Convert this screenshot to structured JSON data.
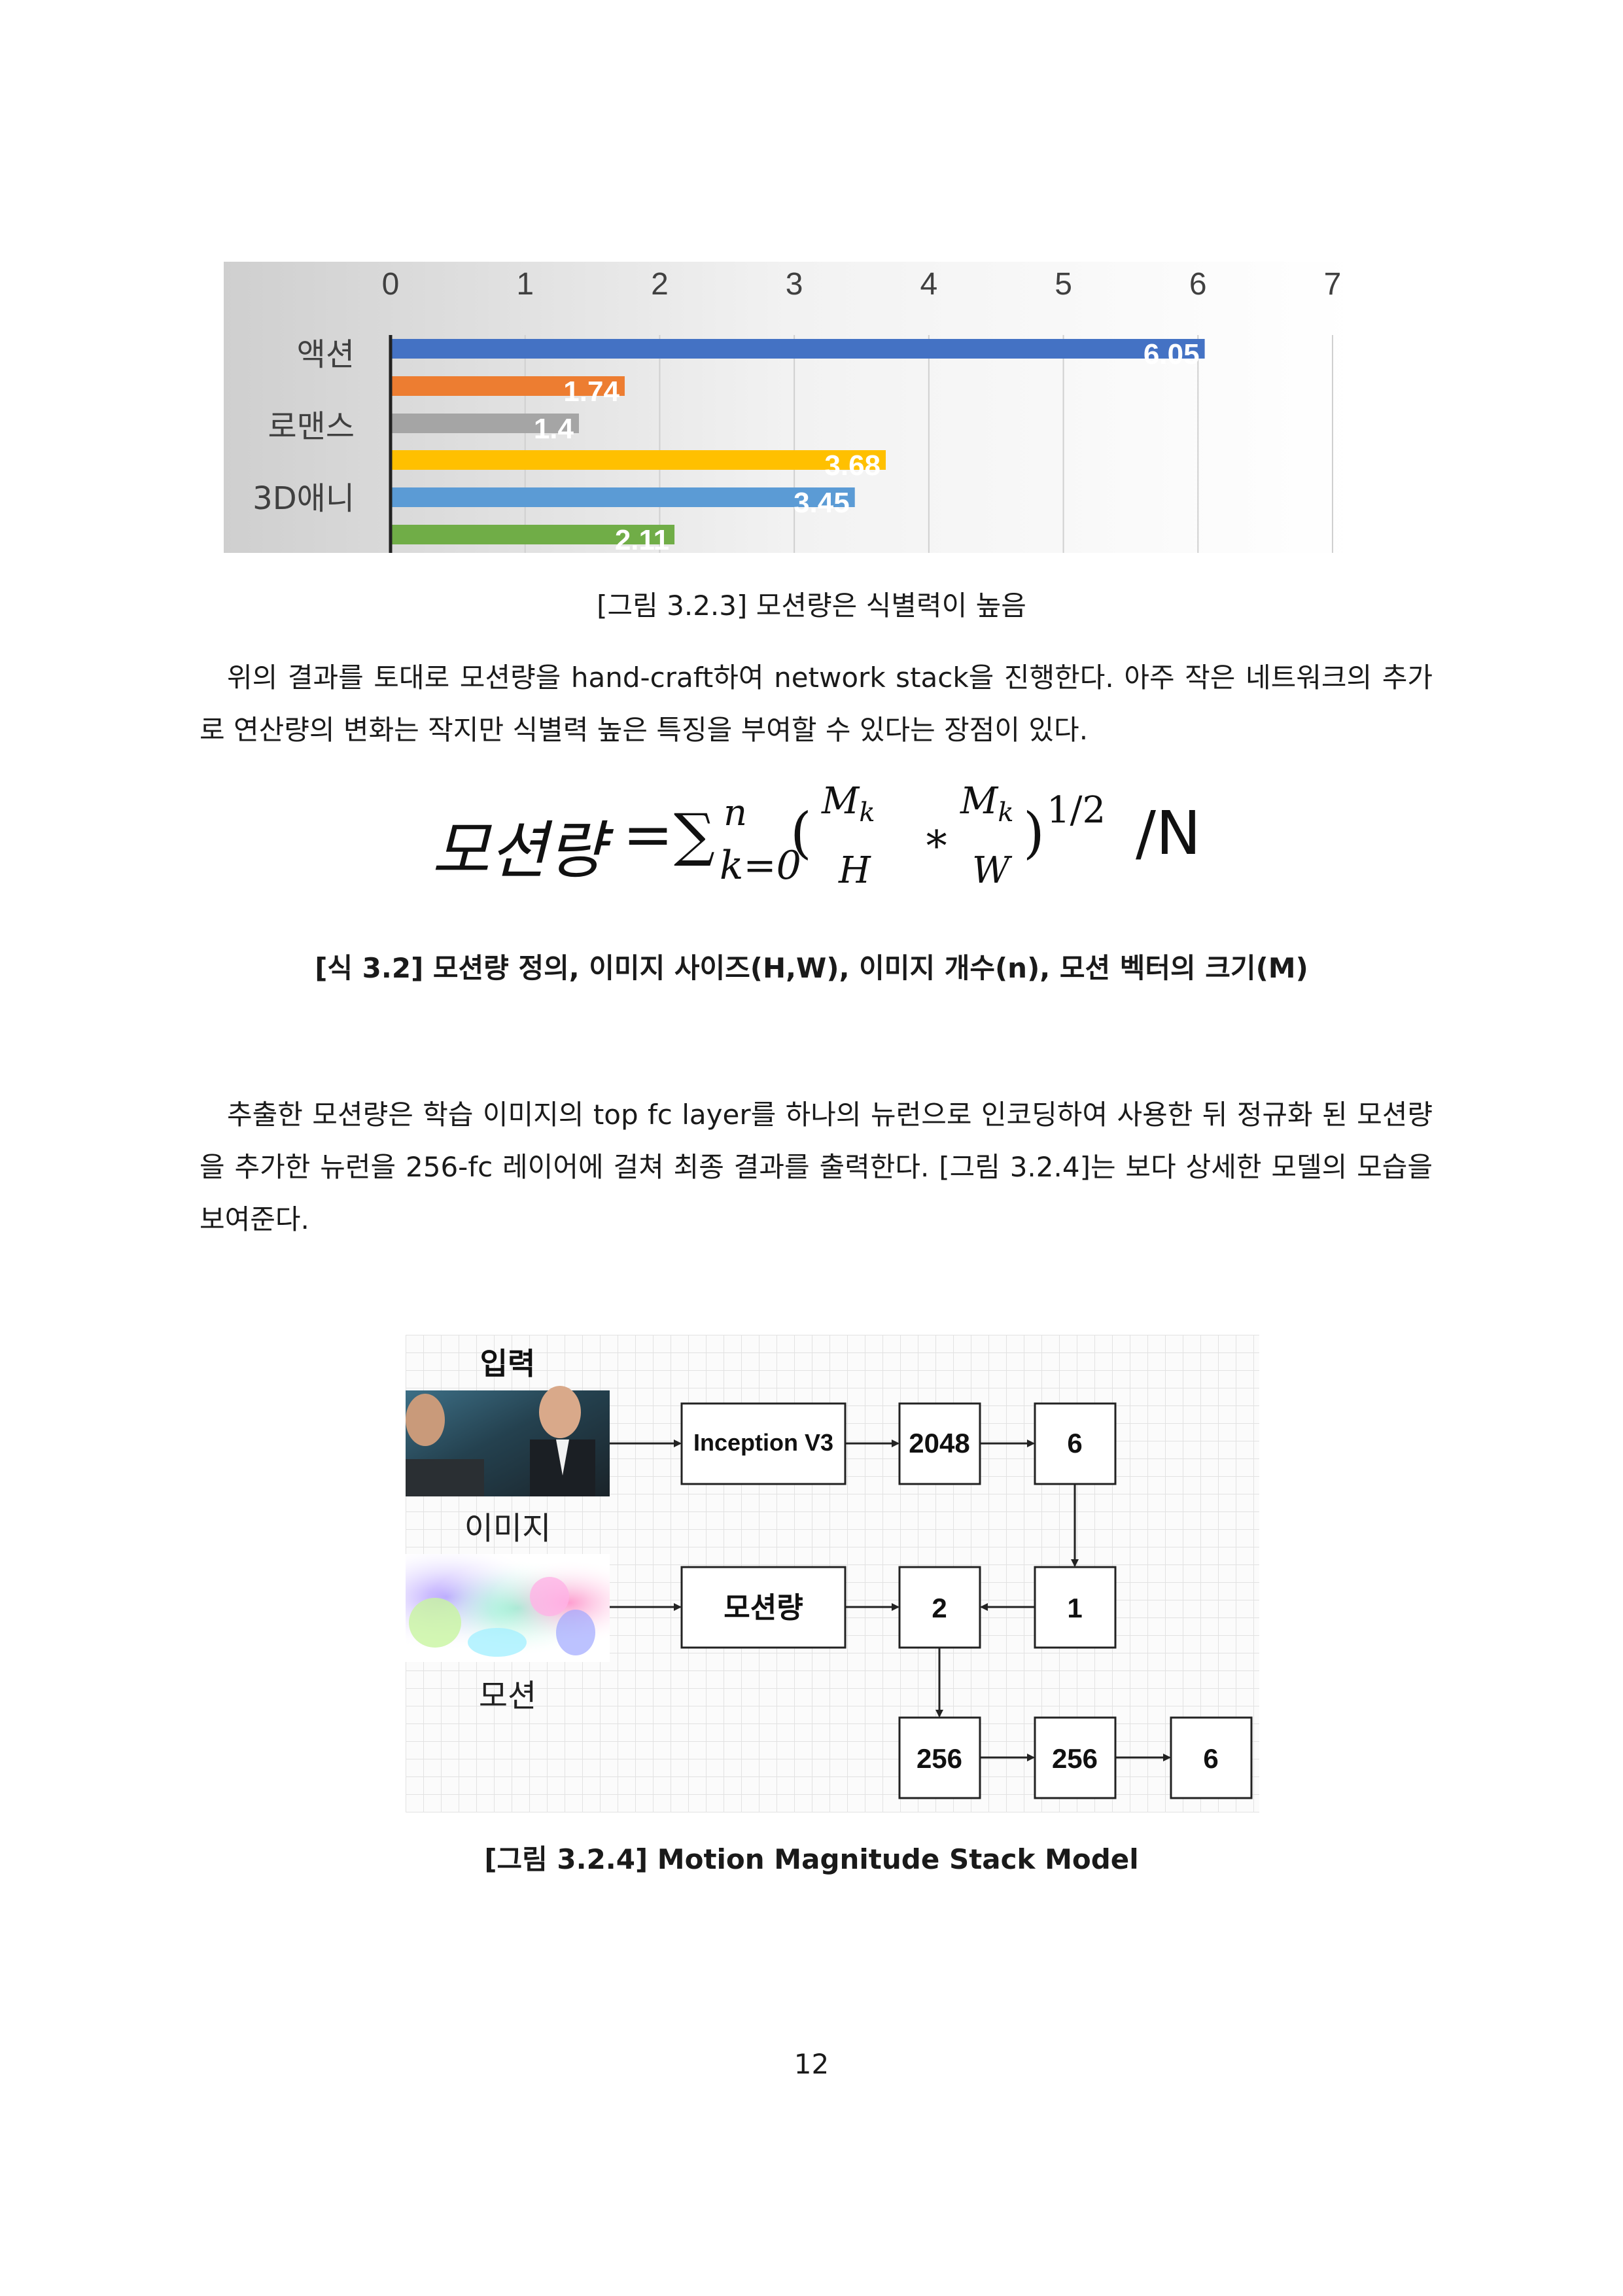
{
  "figure_1": {
    "caption": "[그림 3.2.3] 모션량은 식별력이 높음"
  },
  "chart_data": {
    "type": "bar",
    "orientation": "horizontal",
    "categories": [
      "액션",
      "로맨스",
      "3D애니"
    ],
    "bars": [
      {
        "value": 6.05,
        "label": "6.05",
        "color": "#4472C4"
      },
      {
        "value": 1.74,
        "label": "1.74",
        "color": "#ED7D31"
      },
      {
        "value": 1.4,
        "label": "1.4",
        "color": "#A5A5A5"
      },
      {
        "value": 3.68,
        "label": "3.68",
        "color": "#FFC000"
      },
      {
        "value": 3.45,
        "label": "3.45",
        "color": "#5B9BD5"
      },
      {
        "value": 2.11,
        "label": "2.11",
        "color": "#70AD47"
      }
    ],
    "xlim": [
      0,
      7
    ],
    "x_ticks": [
      "0",
      "1",
      "2",
      "3",
      "4",
      "5",
      "6",
      "7"
    ],
    "x_axis_position": "top",
    "grid": true
  },
  "paragraph_1": "위의 결과를 토대로 모션량을 hand-craft하여 network stack을 진행한다. 아주 작은 네트워크의 추가로 연산량의 변화는 작지만 식별력 높은 특징을 부여할 수 있다는 장점이 있다.",
  "equation": {
    "lhs": "모션량",
    "equals": "=",
    "sum": "∑",
    "sup_n": "n",
    "sub_k": "k=0",
    "open_paren": "(",
    "num1": "M",
    "num1_sub": "k",
    "den1": "H",
    "times": "∗",
    "num2": "M",
    "num2_sub": "k",
    "den2": "W",
    "close_paren": ")",
    "exponent": "1/2",
    "divide_by": "/N",
    "caption": "[식 3.2] 모션량 정의, 이미지 사이즈(H,W), 이미지 개수(n), 모션 벡터의 크기(M)"
  },
  "paragraph_2": "추출한 모션량은 학습 이미지의 top fc layer를 하나의 뉴런으로 인코딩하여 사용한 뒤 정규화 된 모션량을 추가한 뉴런을 256-fc 레이어에 걸쳐 최종 결과를 출력한다. [그림 3.2.4]는 보다 상세한 모델의 모습을 보여준다.",
  "diagram": {
    "input_title": "입력",
    "image_label": "이미지",
    "motion_label": "모션",
    "nodes": {
      "inception": "Inception V3",
      "n2048": "2048",
      "n6_top": "6",
      "motion": "모션량",
      "n2": "2",
      "n1": "1",
      "n256_a": "256",
      "n256_b": "256",
      "n6_out": "6"
    },
    "caption": "[그림 3.2.4] Motion Magnitude Stack Model"
  },
  "page_number": "12"
}
